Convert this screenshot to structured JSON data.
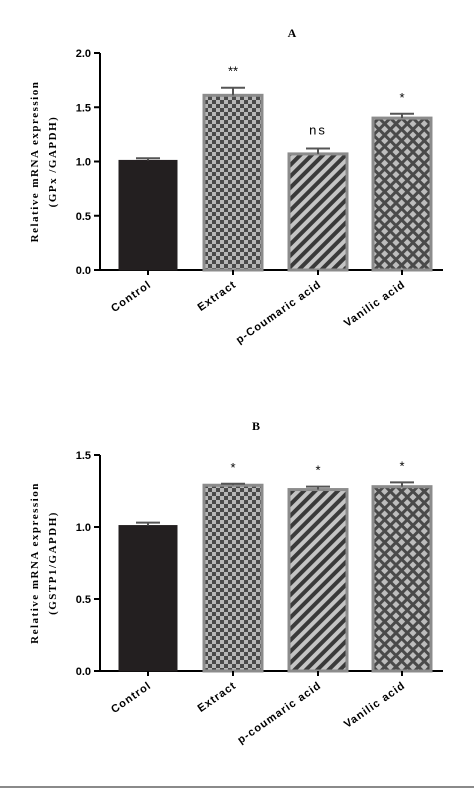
{
  "chart_data": [
    {
      "type": "bar",
      "title": "A",
      "ylabel_lines": [
        "Relative mRNA expression",
        "(GPx /GAPDH)"
      ],
      "categories": [
        "Control",
        "Extract",
        "p-Coumaric acid",
        "Vanilic acid"
      ],
      "values": [
        1.01,
        1.61,
        1.07,
        1.4
      ],
      "errors": [
        0.02,
        0.07,
        0.05,
        0.04
      ],
      "annotations": [
        "",
        "**",
        "ns",
        "*"
      ],
      "patterns": [
        "solid",
        "checker",
        "diagonal",
        "diamond"
      ],
      "ylim": [
        0,
        2.0
      ],
      "yticks": [
        "0.0",
        "0.5",
        "1.0",
        "1.5",
        "2.0"
      ],
      "ytick_values": [
        0,
        0.5,
        1.0,
        1.5,
        2.0
      ]
    },
    {
      "type": "bar",
      "title": "B",
      "ylabel_lines": [
        "Relative mRNA expression",
        "(GSTP1/GAPDH)"
      ],
      "categories": [
        "Control",
        "Extract",
        "p-coumaric acid",
        "Vanilic acid"
      ],
      "values": [
        1.01,
        1.29,
        1.26,
        1.28
      ],
      "errors": [
        0.02,
        0.01,
        0.02,
        0.03
      ],
      "annotations": [
        "",
        "*",
        "*",
        "*"
      ],
      "patterns": [
        "solid",
        "checker",
        "diagonal",
        "diamond"
      ],
      "ylim": [
        0,
        1.5
      ],
      "yticks": [
        "0.0",
        "0.5",
        "1.0",
        "1.5"
      ],
      "ytick_values": [
        0,
        0.5,
        1.0,
        1.5
      ]
    }
  ],
  "colors": {
    "bar_dark": "#231f20",
    "bar_border": "#8c8c8c",
    "pattern_dark": "#3a3a3a",
    "pattern_light": "#b8b8b8",
    "axis": "#000000"
  }
}
